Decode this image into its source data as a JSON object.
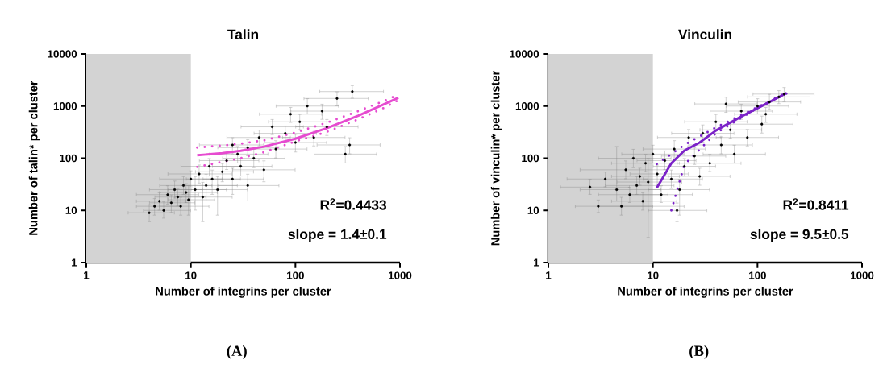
{
  "chart_data": [
    {
      "type": "scatter",
      "title": "Talin",
      "xlabel": "Number of integrins per cluster",
      "ylabel": "Number of talin* per cluster",
      "log": "xy",
      "xlim": [
        1,
        1000
      ],
      "ylim": [
        1,
        10000
      ],
      "xticks": [
        1,
        10,
        100,
        1000
      ],
      "yticks": [
        1,
        10,
        100,
        1000,
        10000
      ],
      "bands": [
        {
          "axis": "x",
          "from": 1,
          "to": 10,
          "color": "#d3d3d3"
        }
      ],
      "annotations": [
        "R$^{2}$=0.4433",
        "slope = 1.4±0.1",
        "**(A)**"
      ],
      "series": [
        {
          "marker": "circle",
          "color": "#000000",
          "x": [
            4,
            4.5,
            5,
            5.5,
            6,
            6.5,
            7,
            7.5,
            8,
            8.5,
            9,
            9.5,
            10,
            11,
            12,
            13,
            14,
            15,
            16,
            18,
            20,
            22,
            25,
            28,
            30,
            35,
            40,
            45,
            50,
            60,
            65,
            80,
            90,
            100,
            110,
            130,
            150,
            180,
            200,
            250,
            300,
            330,
            350,
            25,
            35
          ],
          "values": [
            9,
            12,
            15,
            10,
            20,
            14,
            25,
            18,
            12,
            30,
            22,
            16,
            40,
            25,
            50,
            18,
            30,
            70,
            40,
            25,
            55,
            90,
            40,
            120,
            70,
            160,
            100,
            250,
            60,
            400,
            150,
            300,
            700,
            200,
            500,
            1000,
            250,
            800,
            400,
            1400,
            120,
            180,
            1900,
            180,
            30
          ],
          "xerrors": [
            [
              2.5,
              7
            ],
            [
              3,
              8
            ],
            [
              3,
              9
            ],
            [
              3.5,
              10
            ],
            [
              3,
              12
            ],
            [
              4,
              11
            ],
            [
              4,
              13
            ],
            [
              4.5,
              14
            ],
            [
              5,
              15
            ],
            [
              5,
              16
            ],
            [
              5,
              18
            ],
            [
              6,
              17
            ],
            [
              5,
              20
            ],
            [
              6,
              22
            ],
            [
              6,
              25
            ],
            [
              7,
              25
            ],
            [
              8,
              28
            ],
            [
              8,
              30
            ],
            [
              9,
              30
            ],
            [
              10,
              35
            ],
            [
              11,
              40
            ],
            [
              12,
              45
            ],
            [
              13,
              50
            ],
            [
              15,
              55
            ],
            [
              16,
              60
            ],
            [
              18,
              70
            ],
            [
              20,
              80
            ],
            [
              22,
              90
            ],
            [
              25,
              100
            ],
            [
              30,
              120
            ],
            [
              32,
              130
            ],
            [
              40,
              160
            ],
            [
              45,
              180
            ],
            [
              50,
              200
            ],
            [
              55,
              220
            ],
            [
              65,
              260
            ],
            [
              75,
              300
            ],
            [
              90,
              350
            ],
            [
              100,
              400
            ],
            [
              120,
              500
            ],
            [
              150,
              600
            ],
            [
              160,
              650
            ],
            [
              170,
              700
            ],
            [
              12,
              50
            ],
            [
              18,
              70
            ]
          ],
          "errors": [
            [
              6,
              13
            ],
            [
              8,
              17
            ],
            [
              10,
              22
            ],
            [
              7,
              15
            ],
            [
              13,
              30
            ],
            [
              9,
              20
            ],
            [
              17,
              37
            ],
            [
              12,
              26
            ],
            [
              8,
              18
            ],
            [
              20,
              45
            ],
            [
              14,
              33
            ],
            [
              8,
              30
            ],
            [
              28,
              58
            ],
            [
              10,
              45
            ],
            [
              33,
              75
            ],
            [
              6,
              35
            ],
            [
              15,
              50
            ],
            [
              45,
              100
            ],
            [
              20,
              60
            ],
            [
              8,
              45
            ],
            [
              35,
              80
            ],
            [
              60,
              130
            ],
            [
              20,
              65
            ],
            [
              80,
              170
            ],
            [
              45,
              100
            ],
            [
              110,
              230
            ],
            [
              65,
              150
            ],
            [
              170,
              350
            ],
            [
              35,
              90
            ],
            [
              280,
              560
            ],
            [
              100,
              220
            ],
            [
              200,
              420
            ],
            [
              480,
              950
            ],
            [
              130,
              290
            ],
            [
              350,
              700
            ],
            [
              700,
              1400
            ],
            [
              170,
              350
            ],
            [
              550,
              1100
            ],
            [
              270,
              560
            ],
            [
              1000,
              1900
            ],
            [
              80,
              170
            ],
            [
              120,
              250
            ],
            [
              1400,
              2500
            ],
            [
              120,
              250
            ],
            [
              15,
              50
            ]
          ]
        },
        {
          "type": "line",
          "marker": "none",
          "line_style": "solid",
          "color": "#e64bd0",
          "x": [
            11.5,
            20,
            30,
            50,
            100,
            200,
            400,
            700,
            966
          ],
          "values": [
            114,
            125,
            139,
            167,
            237,
            377,
            657,
            1077,
            1450
          ]
        },
        {
          "type": "line",
          "marker": "none",
          "line_style": "dotted",
          "color": "#e64bd0",
          "x": [
            11.5,
            20,
            30,
            50,
            100,
            200,
            400,
            700,
            966
          ],
          "values": [
            160,
            175,
            190,
            220,
            310,
            480,
            800,
            1250,
            1650
          ]
        },
        {
          "type": "line",
          "marker": "none",
          "line_style": "dotted",
          "color": "#e64bd0",
          "x": [
            11.5,
            20,
            30,
            50,
            100,
            200,
            400,
            700,
            966
          ],
          "values": [
            68,
            85,
            100,
            130,
            210,
            320,
            560,
            920,
            1300
          ]
        }
      ]
    },
    {
      "type": "scatter",
      "title": "Vinculin",
      "xlabel": "Number of integrins per cluster",
      "ylabel": "Number of vinculin* per cluster",
      "log": "xy",
      "xlim": [
        1,
        1000
      ],
      "ylim": [
        1,
        10000
      ],
      "xticks": [
        1,
        10,
        100,
        1000
      ],
      "yticks": [
        1,
        10,
        100,
        1000,
        10000
      ],
      "bands": [
        {
          "axis": "x",
          "from": 1,
          "to": 10,
          "color": "#d3d3d3"
        }
      ],
      "annotations": [
        "R$^{2}$=0.8411",
        "slope = 9.5±0.5",
        "**(B)**"
      ],
      "series": [
        {
          "marker": "circle",
          "color": "#000000",
          "x": [
            2.5,
            3,
            3.5,
            4.5,
            5,
            5.5,
            6,
            6.5,
            7,
            7.5,
            8,
            8.5,
            9,
            10,
            11,
            12,
            13,
            15,
            16,
            18,
            20,
            22,
            25,
            28,
            30,
            35,
            40,
            45,
            55,
            60,
            70,
            80,
            100,
            110,
            130,
            160,
            180,
            50,
            120,
            17
          ],
          "values": [
            28,
            12,
            40,
            25,
            12,
            60,
            20,
            100,
            30,
            45,
            15,
            80,
            35,
            120,
            50,
            20,
            90,
            40,
            150,
            25,
            70,
            250,
            110,
            45,
            300,
            80,
            500,
            180,
            350,
            120,
            800,
            250,
            1000,
            450,
            1200,
            1500,
            1700,
            1100,
            700,
            10
          ],
          "xerrors": [
            [
              1.3,
              6
            ],
            [
              1.8,
              20
            ],
            [
              1.5,
              9
            ],
            [
              2,
              12
            ],
            [
              3,
              10
            ],
            [
              2,
              14
            ],
            [
              3,
              14
            ],
            [
              3,
              15
            ],
            [
              3.5,
              16
            ],
            [
              4,
              18
            ],
            [
              4,
              17
            ],
            [
              4,
              18
            ],
            [
              4.5,
              19
            ],
            [
              5,
              20
            ],
            [
              6,
              22
            ],
            [
              6,
              24
            ],
            [
              7,
              26
            ],
            [
              8,
              30
            ],
            [
              8,
              32
            ],
            [
              9,
              35
            ],
            [
              10,
              40
            ],
            [
              11,
              45
            ],
            [
              12,
              50
            ],
            [
              14,
              55
            ],
            [
              15,
              60
            ],
            [
              17,
              70
            ],
            [
              20,
              80
            ],
            [
              22,
              90
            ],
            [
              28,
              110
            ],
            [
              30,
              120
            ],
            [
              35,
              140
            ],
            [
              40,
              160
            ],
            [
              50,
              200
            ],
            [
              55,
              220
            ],
            [
              65,
              260
            ],
            [
              80,
              320
            ],
            [
              90,
              350
            ],
            [
              25,
              100
            ],
            [
              60,
              240
            ],
            [
              9,
              33
            ]
          ],
          "errors": [
            [
              20,
              40
            ],
            [
              9,
              16
            ],
            [
              28,
              55
            ],
            [
              15,
              170
            ],
            [
              8,
              18
            ],
            [
              40,
              90
            ],
            [
              14,
              28
            ],
            [
              65,
              150
            ],
            [
              20,
              45
            ],
            [
              30,
              65
            ],
            [
              10,
              22
            ],
            [
              55,
              120
            ],
            [
              3,
              100
            ],
            [
              80,
              180
            ],
            [
              30,
              75
            ],
            [
              14,
              30
            ],
            [
              60,
              140
            ],
            [
              26,
              60
            ],
            [
              100,
              220
            ],
            [
              8,
              40
            ],
            [
              45,
              100
            ],
            [
              170,
              360
            ],
            [
              75,
              160
            ],
            [
              30,
              65
            ],
            [
              200,
              440
            ],
            [
              55,
              120
            ],
            [
              340,
              700
            ],
            [
              120,
              260
            ],
            [
              240,
              500
            ],
            [
              80,
              180
            ],
            [
              550,
              1100
            ],
            [
              170,
              360
            ],
            [
              700,
              1400
            ],
            [
              300,
              650
            ],
            [
              850,
              1700
            ],
            [
              1100,
              2000
            ],
            [
              1200,
              2300
            ],
            [
              750,
              1500
            ],
            [
              480,
              950
            ],
            [
              6,
              14
            ]
          ]
        },
        {
          "type": "line",
          "marker": "none",
          "line_style": "solid",
          "color": "#7b22c8",
          "x": [
            10.9,
            15,
            20,
            28,
            40,
            72,
            120,
            190
          ],
          "values": [
            27,
            80,
            140,
            200,
            340,
            650,
            1100,
            1780
          ]
        },
        {
          "type": "line",
          "marker": "none",
          "line_style": "dotted",
          "color": "#7b22c8",
          "x": [
            10.9,
            20,
            40,
            100,
            190
          ],
          "values": [
            77,
            180,
            390,
            950,
            1820
          ]
        },
        {
          "type": "line",
          "marker": "none",
          "line_style": "dotted",
          "color": "#7b22c8",
          "x": [
            15,
            20,
            40,
            100,
            190
          ],
          "values": [
            10,
            75,
            300,
            920,
            1740
          ]
        }
      ]
    }
  ]
}
